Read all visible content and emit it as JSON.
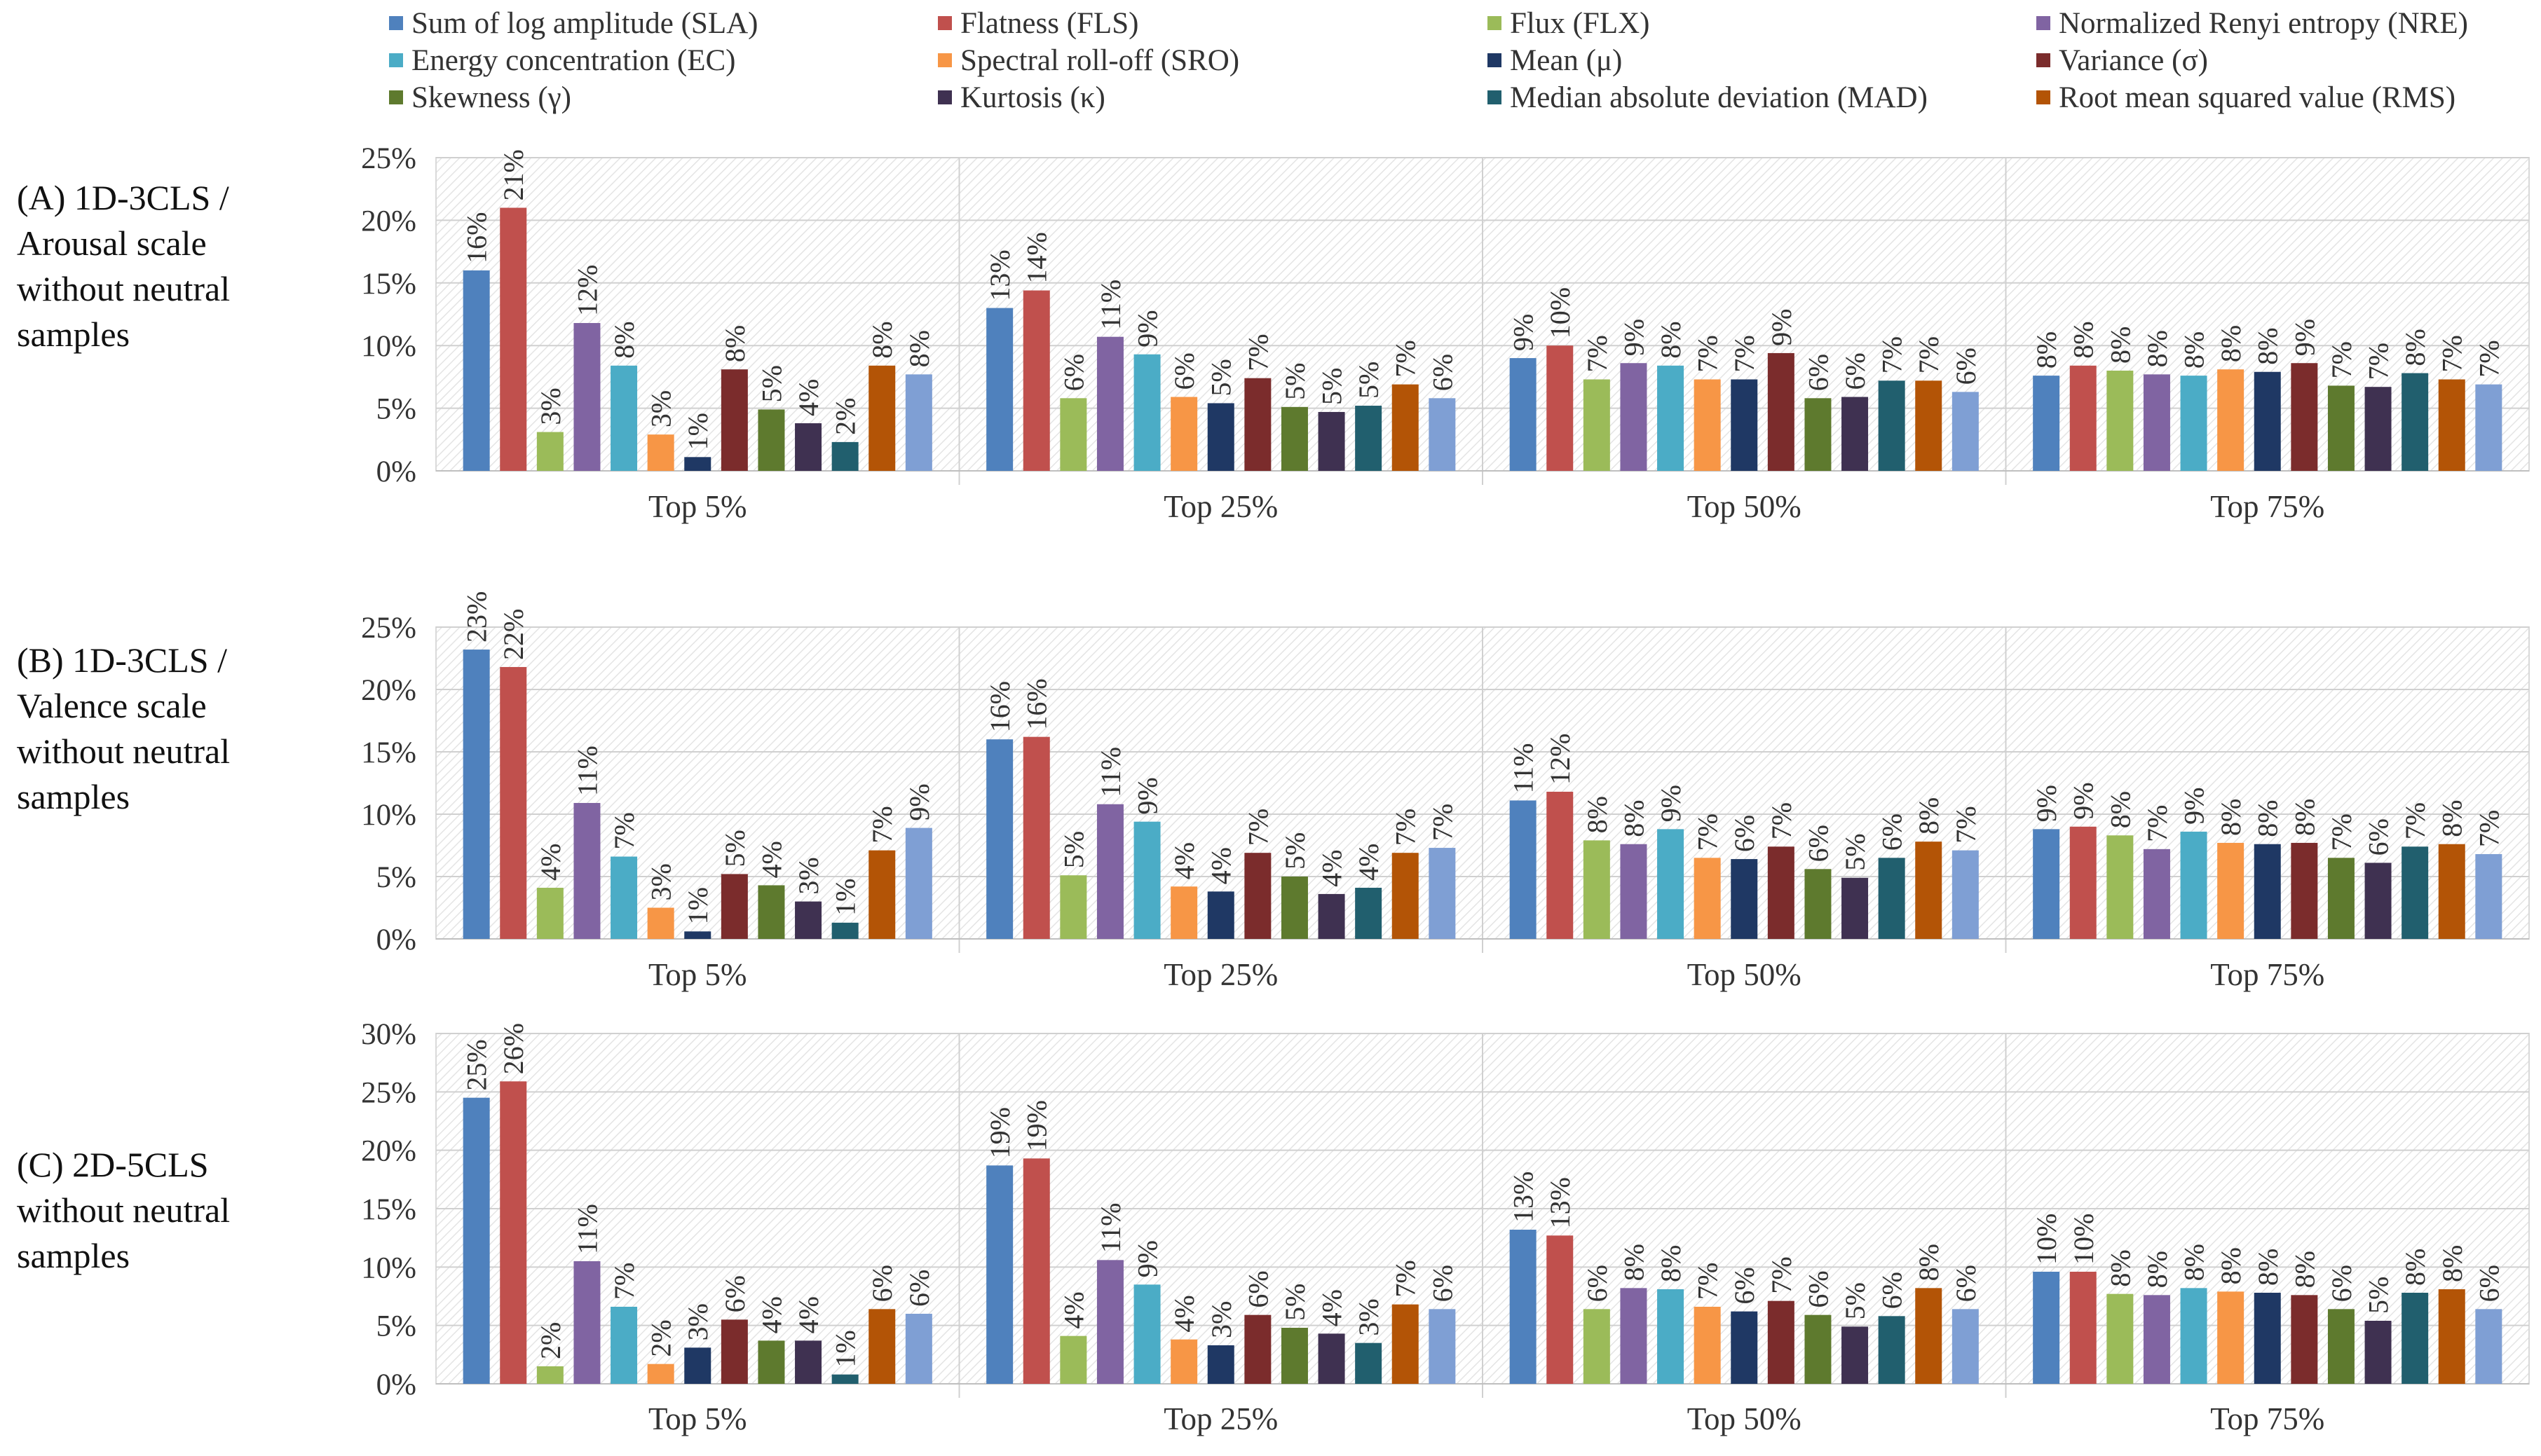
{
  "legend": [
    {
      "key": "SLA",
      "label": "Sum of log amplitude (SLA)",
      "color": "#4f81bd"
    },
    {
      "key": "FLS",
      "label": "Flatness (FLS)",
      "color": "#c0504d"
    },
    {
      "key": "FLX",
      "label": "Flux (FLX)",
      "color": "#9bbb59"
    },
    {
      "key": "NRE",
      "label": "Normalized Renyi entropy (NRE)",
      "color": "#8064a2"
    },
    {
      "key": "EC",
      "label": "Energy concentration (EC)",
      "color": "#4bacc6"
    },
    {
      "key": "SRO",
      "label": "Spectral roll-off (SRO)",
      "color": "#f79646"
    },
    {
      "key": "MEAN",
      "label": "Mean (μ)",
      "color": "#1f3864"
    },
    {
      "key": "VAR",
      "label": "Variance (σ)",
      "color": "#7b2c2c"
    },
    {
      "key": "SKEW",
      "label": "Skewness (γ)",
      "color": "#5e7a2e"
    },
    {
      "key": "KURT",
      "label": "Kurtosis (κ)",
      "color": "#3f3151"
    },
    {
      "key": "MAD",
      "label": "Median absolute deviation (MAD)",
      "color": "#215f6e"
    },
    {
      "key": "RMS",
      "label": "Root mean squared value (RMS)",
      "color": "#b35406"
    },
    {
      "key": "LAST",
      "label": "",
      "color": "#7f9fd4"
    }
  ],
  "panels": [
    {
      "label": "(A) 1D-3CLS /\nArousal scale\nwithout neutral\nsamples"
    },
    {
      "label": "(B) 1D-3CLS /\nValence scale\nwithout neutral\nsamples"
    },
    {
      "label": "(C) 2D-5CLS\nwithout neutral\nsamples"
    }
  ],
  "chart_data": [
    {
      "type": "bar",
      "title": "(A) 1D-3CLS / Arousal scale without neutral samples",
      "categories": [
        "Top 5%",
        "Top 25%",
        "Top 50%",
        "Top 75%"
      ],
      "yticks": [
        "0%",
        "5%",
        "10%",
        "15%",
        "20%",
        "25%"
      ],
      "ylim": [
        0,
        25
      ],
      "series": [
        {
          "name": "SLA",
          "values": [
            16,
            13,
            9,
            7.6
          ],
          "labels": [
            "16%",
            "13%",
            "9%",
            "8%"
          ]
        },
        {
          "name": "FLS",
          "values": [
            21,
            14.4,
            10,
            8.4
          ],
          "labels": [
            "21%",
            "14%",
            "10%",
            "8%"
          ]
        },
        {
          "name": "FLX",
          "values": [
            3.1,
            5.8,
            7.3,
            8
          ],
          "labels": [
            "3%",
            "6%",
            "7%",
            "8%"
          ]
        },
        {
          "name": "NRE",
          "values": [
            11.8,
            10.7,
            8.6,
            7.7
          ],
          "labels": [
            "12%",
            "11%",
            "9%",
            "8%"
          ]
        },
        {
          "name": "EC",
          "values": [
            8.4,
            9.3,
            8.4,
            7.6
          ],
          "labels": [
            "8%",
            "9%",
            "8%",
            "8%"
          ]
        },
        {
          "name": "SRO",
          "values": [
            2.9,
            5.9,
            7.3,
            8.1
          ],
          "labels": [
            "3%",
            "6%",
            "7%",
            "8%"
          ]
        },
        {
          "name": "MEAN",
          "values": [
            1.1,
            5.4,
            7.3,
            7.9
          ],
          "labels": [
            "1%",
            "5%",
            "7%",
            "8%"
          ]
        },
        {
          "name": "VAR",
          "values": [
            8.1,
            7.4,
            9.4,
            8.6
          ],
          "labels": [
            "8%",
            "7%",
            "9%",
            "9%"
          ]
        },
        {
          "name": "SKEW",
          "values": [
            4.9,
            5.1,
            5.8,
            6.8
          ],
          "labels": [
            "5%",
            "5%",
            "6%",
            "7%"
          ]
        },
        {
          "name": "KURT",
          "values": [
            3.8,
            4.7,
            5.9,
            6.7
          ],
          "labels": [
            "4%",
            "5%",
            "6%",
            "7%"
          ]
        },
        {
          "name": "MAD",
          "values": [
            2.3,
            5.2,
            7.2,
            7.8
          ],
          "labels": [
            "2%",
            "5%",
            "7%",
            "8%"
          ]
        },
        {
          "name": "RMS",
          "values": [
            8.4,
            6.9,
            7.2,
            7.3
          ],
          "labels": [
            "8%",
            "7%",
            "7%",
            "7%"
          ]
        },
        {
          "name": "LAST",
          "values": [
            7.7,
            5.8,
            6.3,
            6.9
          ],
          "labels": [
            "8%",
            "6%",
            "6%",
            "7%"
          ]
        }
      ]
    },
    {
      "type": "bar",
      "title": "(B) 1D-3CLS / Valence scale without neutral samples",
      "categories": [
        "Top 5%",
        "Top 25%",
        "Top 50%",
        "Top 75%"
      ],
      "yticks": [
        "0%",
        "5%",
        "10%",
        "15%",
        "20%",
        "25%"
      ],
      "ylim": [
        0,
        25
      ],
      "series": [
        {
          "name": "SLA",
          "values": [
            23.2,
            16,
            11.1,
            8.8
          ],
          "labels": [
            "23%",
            "16%",
            "11%",
            "9%"
          ]
        },
        {
          "name": "FLS",
          "values": [
            21.8,
            16.2,
            11.8,
            9
          ],
          "labels": [
            "22%",
            "16%",
            "12%",
            "9%"
          ]
        },
        {
          "name": "FLX",
          "values": [
            4.1,
            5.1,
            7.9,
            8.3
          ],
          "labels": [
            "4%",
            "5%",
            "8%",
            "8%"
          ]
        },
        {
          "name": "NRE",
          "values": [
            10.9,
            10.8,
            7.6,
            7.2
          ],
          "labels": [
            "11%",
            "11%",
            "8%",
            "7%"
          ]
        },
        {
          "name": "EC",
          "values": [
            6.6,
            9.4,
            8.8,
            8.6
          ],
          "labels": [
            "7%",
            "9%",
            "9%",
            "9%"
          ]
        },
        {
          "name": "SRO",
          "values": [
            2.5,
            4.2,
            6.5,
            7.7
          ],
          "labels": [
            "3%",
            "4%",
            "7%",
            "8%"
          ]
        },
        {
          "name": "MEAN",
          "values": [
            0.6,
            3.8,
            6.4,
            7.6
          ],
          "labels": [
            "1%",
            "4%",
            "6%",
            "8%"
          ]
        },
        {
          "name": "VAR",
          "values": [
            5.2,
            6.9,
            7.4,
            7.7
          ],
          "labels": [
            "5%",
            "7%",
            "7%",
            "8%"
          ]
        },
        {
          "name": "SKEW",
          "values": [
            4.3,
            5,
            5.6,
            6.5
          ],
          "labels": [
            "4%",
            "5%",
            "6%",
            "7%"
          ]
        },
        {
          "name": "KURT",
          "values": [
            3,
            3.6,
            4.9,
            6.1
          ],
          "labels": [
            "3%",
            "4%",
            "5%",
            "6%"
          ]
        },
        {
          "name": "MAD",
          "values": [
            1.3,
            4.1,
            6.5,
            7.4
          ],
          "labels": [
            "1%",
            "4%",
            "6%",
            "7%"
          ]
        },
        {
          "name": "RMS",
          "values": [
            7.1,
            6.9,
            7.8,
            7.6
          ],
          "labels": [
            "7%",
            "7%",
            "8%",
            "8%"
          ]
        },
        {
          "name": "LAST",
          "values": [
            8.9,
            7.3,
            7.1,
            6.8
          ],
          "labels": [
            "9%",
            "7%",
            "7%",
            "7%"
          ]
        }
      ]
    },
    {
      "type": "bar",
      "title": "(C) 2D-5CLS without neutral samples",
      "categories": [
        "Top 5%",
        "Top 25%",
        "Top 50%",
        "Top 75%"
      ],
      "yticks": [
        "0%",
        "5%",
        "10%",
        "15%",
        "20%",
        "25%",
        "30%"
      ],
      "ylim": [
        0,
        30
      ],
      "series": [
        {
          "name": "SLA",
          "values": [
            24.5,
            18.7,
            13.2,
            9.6
          ],
          "labels": [
            "25%",
            "19%",
            "13%",
            "10%"
          ]
        },
        {
          "name": "FLS",
          "values": [
            25.9,
            19.3,
            12.7,
            9.6
          ],
          "labels": [
            "26%",
            "19%",
            "13%",
            "10%"
          ]
        },
        {
          "name": "FLX",
          "values": [
            1.5,
            4.1,
            6.4,
            7.7
          ],
          "labels": [
            "2%",
            "4%",
            "6%",
            "8%"
          ]
        },
        {
          "name": "NRE",
          "values": [
            10.5,
            10.6,
            8.2,
            7.6
          ],
          "labels": [
            "11%",
            "11%",
            "8%",
            "8%"
          ]
        },
        {
          "name": "EC",
          "values": [
            6.6,
            8.5,
            8.1,
            8.2
          ],
          "labels": [
            "7%",
            "9%",
            "8%",
            "8%"
          ]
        },
        {
          "name": "SRO",
          "values": [
            1.7,
            3.8,
            6.6,
            7.9
          ],
          "labels": [
            "2%",
            "4%",
            "7%",
            "8%"
          ]
        },
        {
          "name": "MEAN",
          "values": [
            3.1,
            3.3,
            6.2,
            7.8
          ],
          "labels": [
            "3%",
            "3%",
            "6%",
            "8%"
          ]
        },
        {
          "name": "VAR",
          "values": [
            5.5,
            5.9,
            7.1,
            7.6
          ],
          "labels": [
            "6%",
            "6%",
            "7%",
            "8%"
          ]
        },
        {
          "name": "SKEW",
          "values": [
            3.7,
            4.8,
            5.9,
            6.4
          ],
          "labels": [
            "4%",
            "5%",
            "6%",
            "6%"
          ]
        },
        {
          "name": "KURT",
          "values": [
            3.7,
            4.3,
            4.9,
            5.4
          ],
          "labels": [
            "4%",
            "4%",
            "5%",
            "5%"
          ]
        },
        {
          "name": "MAD",
          "values": [
            0.8,
            3.5,
            5.8,
            7.8
          ],
          "labels": [
            "1%",
            "3%",
            "6%",
            "8%"
          ]
        },
        {
          "name": "RMS",
          "values": [
            6.4,
            6.8,
            8.2,
            8.1
          ],
          "labels": [
            "6%",
            "7%",
            "8%",
            "8%"
          ]
        },
        {
          "name": "LAST",
          "values": [
            6,
            6.4,
            6.4,
            6.4
          ],
          "labels": [
            "6%",
            "6%",
            "6%",
            "6%"
          ]
        }
      ]
    }
  ]
}
